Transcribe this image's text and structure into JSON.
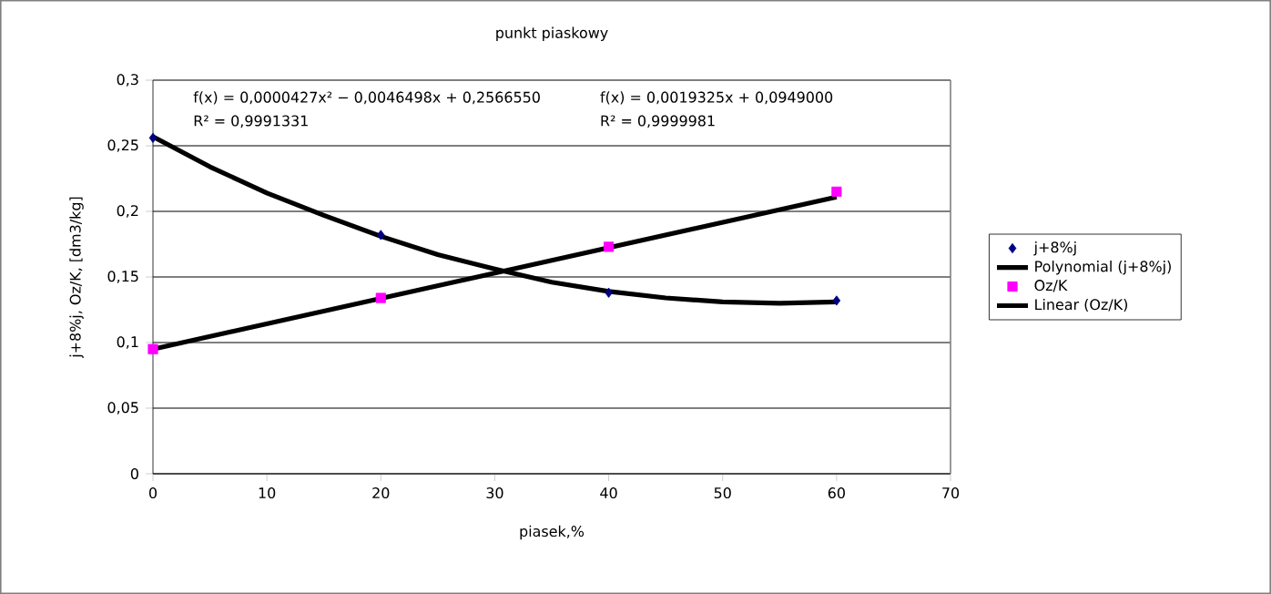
{
  "chart_data": {
    "type": "scatter",
    "title": "punkt piaskowy",
    "xlabel": "piasek,%",
    "ylabel": "j+8%j, Oz/K, [dm3/kg]",
    "xlim": [
      0,
      70
    ],
    "xticks": [
      0,
      10,
      20,
      30,
      40,
      50,
      60,
      70
    ],
    "ylim": [
      0,
      0.3
    ],
    "yticks": [
      {
        "value": 0,
        "label": "0"
      },
      {
        "value": 0.05,
        "label": "0,05"
      },
      {
        "value": 0.1,
        "label": "0,1"
      },
      {
        "value": 0.15,
        "label": "0,15"
      },
      {
        "value": 0.2,
        "label": "0,2"
      },
      {
        "value": 0.25,
        "label": "0,25"
      },
      {
        "value": 0.3,
        "label": "0,3"
      }
    ],
    "grid": "y",
    "legend": "right",
    "series": [
      {
        "name": "j+8%j",
        "marker": "diamond",
        "color": "#000080",
        "x": [
          0,
          20,
          40,
          60
        ],
        "values": [
          0.256,
          0.182,
          0.138,
          0.132
        ]
      },
      {
        "name": "Polynomial (j+8%j)",
        "type": "line",
        "marker": "none",
        "line_style": "solid",
        "color": "#000000",
        "x": [
          0,
          5,
          10,
          15,
          20,
          25,
          30,
          35,
          40,
          45,
          50,
          55,
          60
        ],
        "values": [
          0.257,
          0.234,
          0.214,
          0.197,
          0.181,
          0.167,
          0.156,
          0.146,
          0.139,
          0.134,
          0.131,
          0.13,
          0.131
        ]
      },
      {
        "name": "Oz/K",
        "marker": "square",
        "color": "#ff00ff",
        "x": [
          0,
          20,
          40,
          60
        ],
        "values": [
          0.095,
          0.134,
          0.173,
          0.215
        ]
      },
      {
        "name": "Linear (Oz/K)",
        "type": "line",
        "marker": "none",
        "line_style": "solid",
        "color": "#000000",
        "x": [
          0,
          60
        ],
        "values": [
          0.095,
          0.211
        ]
      }
    ],
    "annotations": [
      "f(x) = 0,0000427x² − 0,0046498x + 0,2566550",
      "R² = 0,9991331",
      "f(x) = 0,0019325x + 0,0949000",
      "R² = 0,9999981"
    ]
  }
}
